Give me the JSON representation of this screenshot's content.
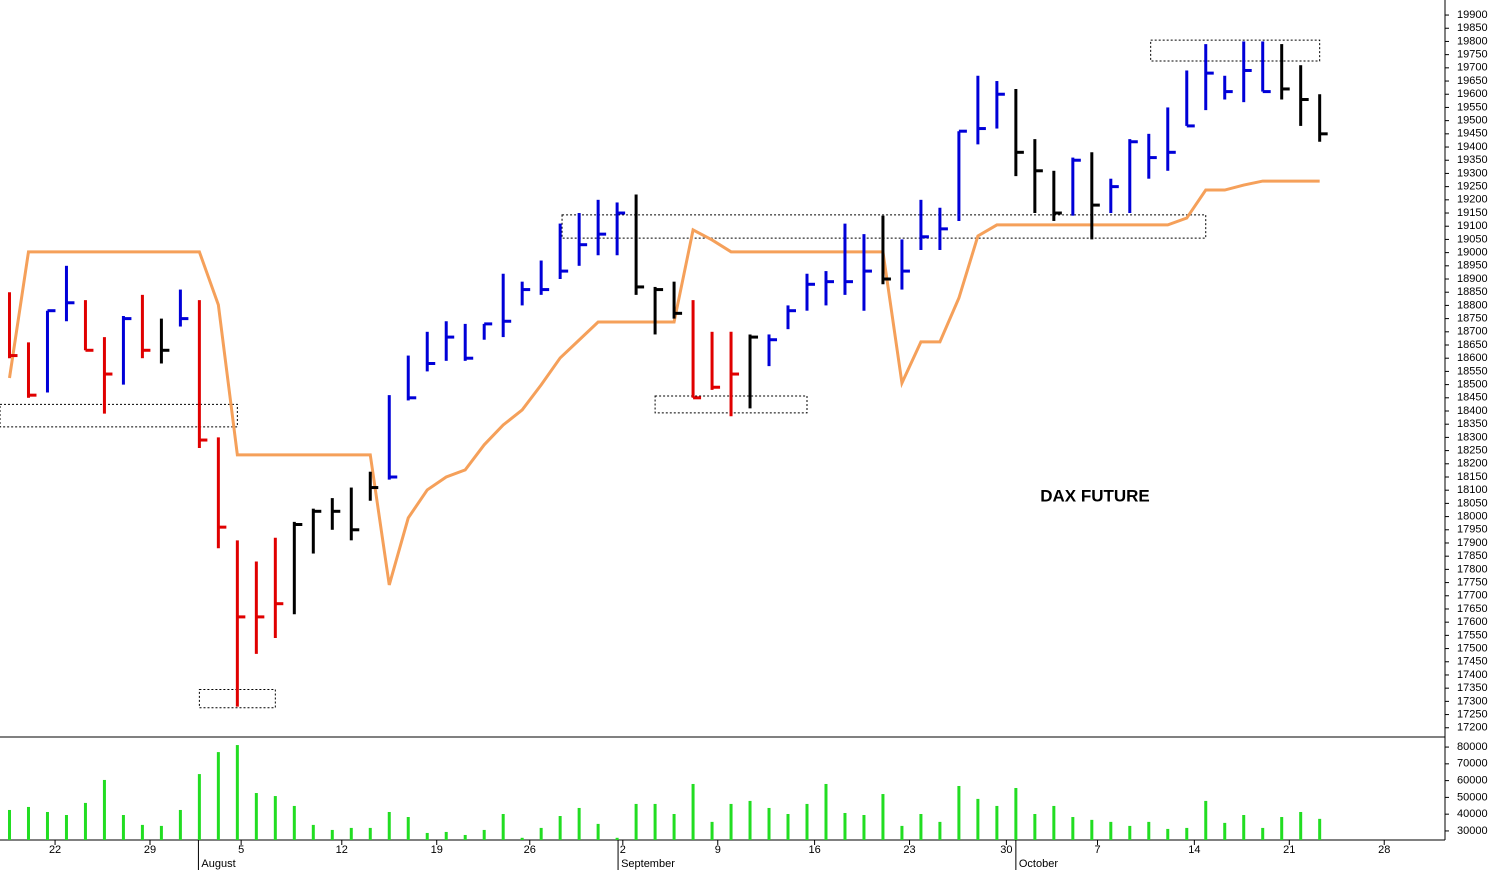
{
  "chart_data": [
    {
      "type": "ohlc",
      "title": "DAX FUTURE",
      "x": [
        0,
        1,
        2,
        3,
        4,
        5,
        6,
        7,
        8,
        9,
        10,
        11,
        12,
        13,
        14,
        15,
        16,
        17,
        18,
        19,
        20,
        21,
        22,
        23,
        24,
        25,
        26,
        27,
        28,
        29,
        30,
        31,
        32,
        33,
        34,
        35,
        36,
        37,
        38,
        39,
        40,
        41,
        42,
        43,
        44,
        45,
        46,
        47,
        48,
        49,
        50,
        51,
        52,
        53,
        54,
        55,
        56,
        57,
        58,
        59,
        60,
        61,
        62,
        63,
        64,
        65,
        66,
        67,
        68,
        69
      ],
      "high": [
        18850,
        18660,
        18780,
        18950,
        18820,
        18680,
        18760,
        18840,
        18750,
        18860,
        18820,
        18300,
        17910,
        17830,
        17920,
        17980,
        18030,
        18070,
        18110,
        18170,
        18460,
        18610,
        18700,
        18740,
        18730,
        18730,
        18920,
        18890,
        18970,
        19110,
        19150,
        19200,
        19190,
        19220,
        18870,
        18890,
        18820,
        18700,
        18700,
        18690,
        18690,
        18800,
        18920,
        18930,
        19110,
        19070,
        19140,
        19050,
        19200,
        19170,
        19460,
        19670,
        19650,
        19620,
        19430,
        19310,
        19360,
        19380,
        19280,
        19430,
        19450,
        19550,
        19690,
        19790,
        19670,
        19800,
        19800,
        19790,
        19710,
        19600
      ],
      "low": [
        18600,
        18450,
        18470,
        18740,
        18630,
        18390,
        18500,
        18600,
        18580,
        18720,
        18260,
        17880,
        17280,
        17480,
        17540,
        17630,
        17860,
        17950,
        17910,
        18060,
        18140,
        18440,
        18550,
        18590,
        18590,
        18670,
        18680,
        18800,
        18840,
        18900,
        18950,
        18990,
        18990,
        18840,
        18690,
        18750,
        18450,
        18480,
        18380,
        18410,
        18570,
        18710,
        18780,
        18800,
        18840,
        18780,
        18880,
        18860,
        19010,
        19010,
        19120,
        19410,
        19470,
        19290,
        19150,
        19120,
        19140,
        19050,
        19150,
        19150,
        19280,
        19310,
        19480,
        19540,
        19580,
        19570,
        19610,
        19580,
        19480,
        19420
      ],
      "close": [
        18610,
        18460,
        18780,
        18810,
        18630,
        18540,
        18750,
        18630,
        18630,
        18750,
        18290,
        17960,
        17620,
        17620,
        17670,
        17970,
        18020,
        18020,
        17950,
        18110,
        18150,
        18450,
        18580,
        18680,
        18600,
        18730,
        18740,
        18860,
        18860,
        18930,
        19030,
        19070,
        19150,
        18870,
        18860,
        18770,
        18450,
        18490,
        18540,
        18680,
        18670,
        18780,
        18880,
        18890,
        18890,
        18930,
        18900,
        18930,
        19060,
        19090,
        19460,
        19470,
        19600,
        19380,
        19310,
        19150,
        19350,
        19180,
        19250,
        19420,
        19360,
        19380,
        19480,
        19680,
        19610,
        19690,
        19610,
        19620,
        19580,
        19450
      ],
      "colors": [
        "#e00000",
        "#e00000",
        "#0000d8",
        "#0000d8",
        "#e00000",
        "#e00000",
        "#0000d8",
        "#e00000",
        "#000000",
        "#0000d8",
        "#e00000",
        "#e00000",
        "#e00000",
        "#e00000",
        "#e00000",
        "#000000",
        "#000000",
        "#000000",
        "#000000",
        "#000000",
        "#0000d8",
        "#0000d8",
        "#0000d8",
        "#0000d8",
        "#0000d8",
        "#0000d8",
        "#0000d8",
        "#0000d8",
        "#0000d8",
        "#0000d8",
        "#0000d8",
        "#0000d8",
        "#0000d8",
        "#000000",
        "#000000",
        "#000000",
        "#e00000",
        "#e00000",
        "#e00000",
        "#000000",
        "#0000d8",
        "#0000d8",
        "#0000d8",
        "#0000d8",
        "#0000d8",
        "#0000d8",
        "#000000",
        "#0000d8",
        "#0000d8",
        "#0000d8",
        "#0000d8",
        "#0000d8",
        "#0000d8",
        "#000000",
        "#000000",
        "#000000",
        "#0000d8",
        "#000000",
        "#0000d8",
        "#0000d8",
        "#0000d8",
        "#0000d8",
        "#0000d8",
        "#0000d8",
        "#0000d8",
        "#0000d8",
        "#0000d8",
        "#000000",
        "#000000",
        "#000000"
      ],
      "stop_line": {
        "color": "#f5a05a",
        "values": [
          18525,
          19003,
          19003,
          19003,
          19003,
          19003,
          19003,
          19003,
          19003,
          19003,
          19003,
          18802,
          18234,
          18234,
          18234,
          18234,
          18234,
          18234,
          18234,
          18234,
          17741,
          17995,
          18101,
          18150,
          18177,
          18272,
          18347,
          18404,
          18499,
          18601,
          18669,
          18737,
          18737,
          18737,
          18737,
          18737,
          19086,
          19048,
          19003,
          19003,
          19003,
          19003,
          19003,
          19003,
          19003,
          19003,
          19003,
          18506,
          18662,
          18662,
          18828,
          19063,
          19105,
          19105,
          19105,
          19105,
          19105,
          19105,
          19105,
          19105,
          19105,
          19105,
          19131,
          19237,
          19237,
          19256,
          19271,
          19271,
          19271,
          19271
        ]
      },
      "zones": [
        {
          "x": [
            -0.5,
            12
          ],
          "y": [
            18340,
            18425
          ]
        },
        {
          "x": [
            10,
            14
          ],
          "y": [
            17276,
            17345
          ]
        },
        {
          "x": [
            29.1,
            63
          ],
          "y": [
            19055,
            19143
          ]
        },
        {
          "x": [
            34,
            42
          ],
          "y": [
            18393,
            18457
          ]
        },
        {
          "x": [
            60.1,
            69
          ],
          "y": [
            19726,
            19805
          ]
        }
      ],
      "xlim": [
        -0.5,
        75.6
      ],
      "xticks": [
        {
          "value": 2.4,
          "label": "22"
        },
        {
          "value": 7.4,
          "label": "29"
        },
        {
          "value": 12.2,
          "label": "5"
        },
        {
          "value": 17.5,
          "label": "12"
        },
        {
          "value": 22.5,
          "label": "19"
        },
        {
          "value": 27.4,
          "label": "26"
        },
        {
          "value": 32.3,
          "label": "2"
        },
        {
          "value": 37.3,
          "label": "9"
        },
        {
          "value": 42.4,
          "label": "16"
        },
        {
          "value": 47.4,
          "label": "23"
        },
        {
          "value": 52.5,
          "label": "30"
        },
        {
          "value": 57.3,
          "label": "7"
        },
        {
          "value": 62.4,
          "label": "14"
        },
        {
          "value": 67.4,
          "label": "21"
        },
        {
          "value": 72.4,
          "label": "28"
        }
      ],
      "months": [
        {
          "value": 9.95,
          "label": "August"
        },
        {
          "value": 32.05,
          "label": "September"
        },
        {
          "value": 53.0,
          "label": "October"
        }
      ],
      "ylim": [
        17165,
        19957
      ],
      "yticks": [
        17200,
        17250,
        17300,
        17350,
        17400,
        17450,
        17500,
        17550,
        17600,
        17650,
        17700,
        17750,
        17800,
        17850,
        17900,
        17950,
        18000,
        18050,
        18100,
        18150,
        18200,
        18250,
        18300,
        18350,
        18400,
        18450,
        18500,
        18550,
        18600,
        18650,
        18700,
        18750,
        18800,
        18850,
        18900,
        18950,
        19000,
        19050,
        19100,
        19150,
        19200,
        19250,
        19300,
        19350,
        19400,
        19450,
        19500,
        19550,
        19600,
        19650,
        19700,
        19750,
        19800,
        19850,
        19900
      ]
    },
    {
      "type": "bar",
      "color": "#22dd22",
      "x": [
        0,
        1,
        2,
        3,
        4,
        5,
        6,
        7,
        8,
        9,
        10,
        11,
        12,
        13,
        14,
        15,
        16,
        17,
        18,
        19,
        20,
        21,
        22,
        23,
        24,
        25,
        26,
        27,
        28,
        29,
        30,
        31,
        32,
        33,
        34,
        35,
        36,
        37,
        38,
        39,
        40,
        41,
        42,
        43,
        44,
        45,
        46,
        47,
        48,
        49,
        50,
        51,
        52,
        53,
        54,
        55,
        56,
        57,
        58,
        59,
        60,
        61,
        62,
        63,
        64,
        65,
        66,
        67,
        68,
        69
      ],
      "values": [
        42500,
        44300,
        41300,
        39500,
        46700,
        60400,
        39500,
        33600,
        33000,
        42500,
        63900,
        77000,
        81200,
        52600,
        50800,
        44900,
        33600,
        30600,
        31800,
        31800,
        41300,
        38300,
        28800,
        29400,
        27600,
        30600,
        40100,
        25900,
        31800,
        38900,
        43700,
        34200,
        25900,
        46100,
        46100,
        40100,
        58000,
        35400,
        46100,
        47900,
        43700,
        40100,
        46100,
        58000,
        40700,
        39500,
        52000,
        33000,
        40100,
        35400,
        56800,
        49100,
        44900,
        55600,
        40100,
        44900,
        38300,
        36600,
        35400,
        33000,
        35400,
        31200,
        31800,
        47900,
        34800,
        39500,
        31800,
        38300,
        41300,
        37200
      ],
      "xlim": [
        -0.5,
        75.6
      ],
      "ylim": [
        24600,
        86000
      ],
      "yticks": [
        30000,
        40000,
        50000,
        60000,
        70000,
        80000
      ]
    }
  ]
}
